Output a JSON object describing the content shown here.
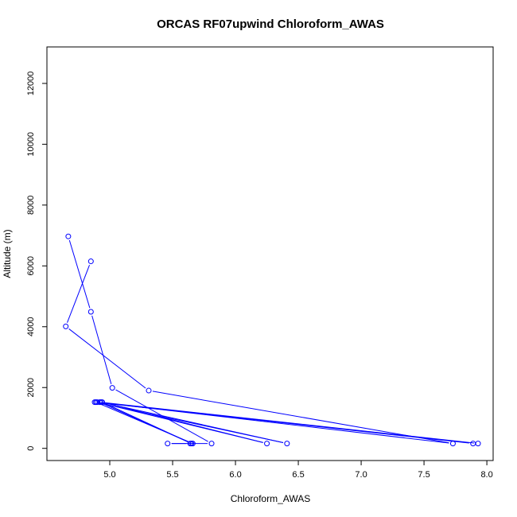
{
  "chart_data": {
    "type": "line",
    "title": "ORCAS RF07upwind Chloroform_AWAS",
    "xlabel": "Chloroform_AWAS",
    "ylabel": "Altitude (m)",
    "xlim": [
      4.5,
      8.05
    ],
    "ylim": [
      -400,
      13200
    ],
    "xticks": [
      5.0,
      5.5,
      6.0,
      6.5,
      7.0,
      7.5,
      8.0
    ],
    "xtick_labels": [
      "5.0",
      "5.5",
      "6.0",
      "6.5",
      "7.0",
      "7.5",
      "8.0"
    ],
    "yticks": [
      0,
      2000,
      4000,
      6000,
      8000,
      10000,
      12000
    ],
    "ytick_labels": [
      "0",
      "2000",
      "4000",
      "6000",
      "8000",
      "10000",
      "12000"
    ],
    "marker": "open-circle",
    "color": "#0000ff",
    "series": [
      {
        "name": "Chloroform_AWAS",
        "x": [
          4.67,
          4.85,
          5.02,
          5.81,
          5.46,
          5.64,
          5.66,
          4.89,
          4.93,
          6.41,
          4.88,
          7.89,
          7.93,
          4.92,
          5.65,
          4.94,
          6.25,
          4.9,
          7.73,
          5.31,
          4.65,
          4.85
        ],
        "y": [
          6970,
          4490,
          1990,
          160,
          160,
          160,
          160,
          1520,
          1520,
          160,
          1520,
          160,
          160,
          1520,
          160,
          1520,
          160,
          1520,
          160,
          1900,
          4010,
          6150
        ]
      }
    ]
  }
}
